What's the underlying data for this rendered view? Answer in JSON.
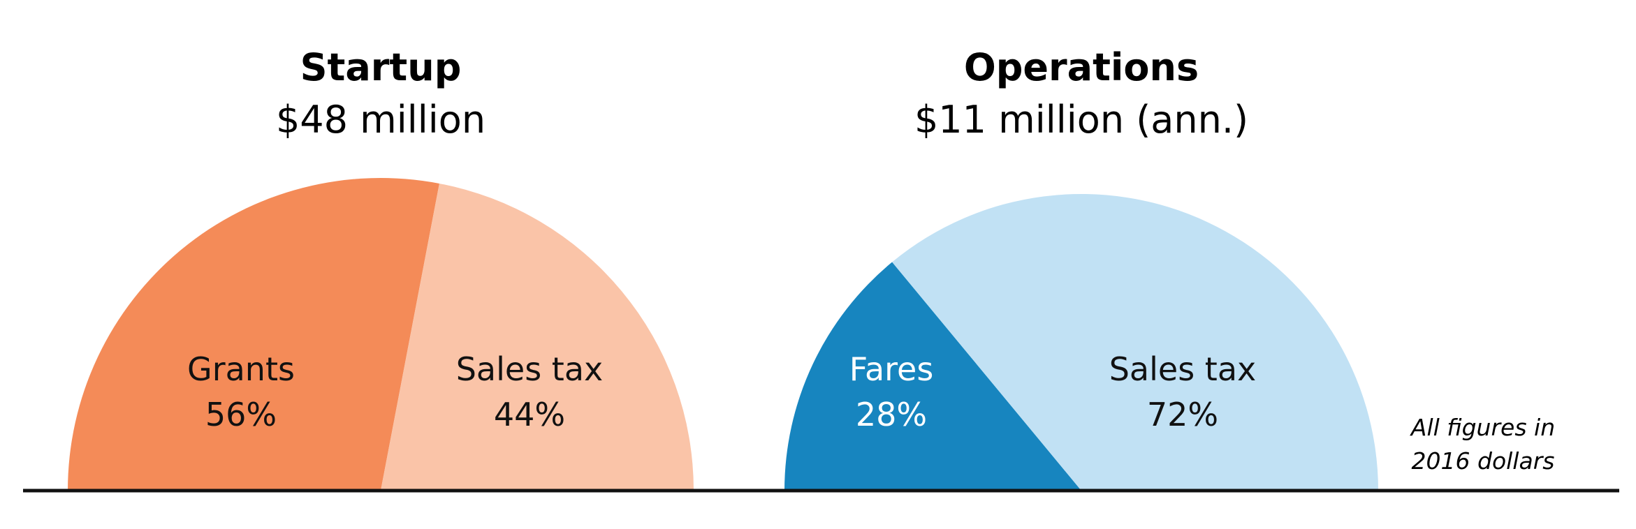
{
  "chart_data": [
    {
      "type": "pie",
      "title": "Startup",
      "subtitle": "$48 million",
      "shape": "half-pie",
      "slices": [
        {
          "label": "Grants",
          "value": 56,
          "value_label": "56%",
          "color": "#F48B58",
          "text_color": "#111111"
        },
        {
          "label": "Sales tax",
          "value": 44,
          "value_label": "44%",
          "color": "#FAC4A8",
          "text_color": "#111111"
        }
      ]
    },
    {
      "type": "pie",
      "title": "Operations",
      "subtitle": "$11 million (ann.)",
      "shape": "half-pie",
      "slices": [
        {
          "label": "Fares",
          "value": 28,
          "value_label": "28%",
          "color": "#1785BF",
          "text_color": "#FFFFFF"
        },
        {
          "label": "Sales tax",
          "value": 72,
          "value_label": "72%",
          "color": "#C1E1F4",
          "text_color": "#111111"
        }
      ]
    }
  ],
  "note": {
    "line1": "All figures in",
    "line2": "2016 dollars"
  },
  "colors": {
    "baseline": "#111111",
    "background": "#FFFFFF"
  }
}
